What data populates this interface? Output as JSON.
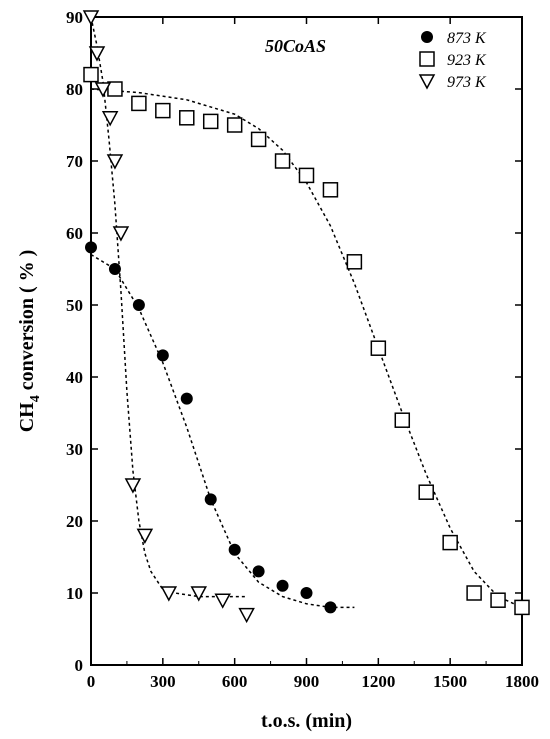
{
  "chart_data": {
    "type": "scatter",
    "title": "50CoAS",
    "xlabel": "t.o.s. (min)",
    "ylabel_main": "CH",
    "ylabel_sub": "4",
    "ylabel_rest": " conversion ( % )",
    "xlim": [
      0,
      1800
    ],
    "ylim": [
      0,
      90
    ],
    "xticks": [
      0,
      300,
      600,
      900,
      1200,
      1500,
      1800
    ],
    "yticks": [
      0,
      10,
      20,
      30,
      40,
      50,
      60,
      70,
      80,
      90
    ],
    "grid": false,
    "legend_position": "top-right",
    "series": [
      {
        "name": "873 K",
        "marker": "filled-circle",
        "x": [
          0,
          100,
          200,
          300,
          400,
          500,
          600,
          700,
          800,
          900,
          1000
        ],
        "y": [
          58,
          55,
          50,
          43,
          37,
          23,
          16,
          13,
          11,
          10,
          8
        ],
        "fit": {
          "x": [
            0,
            100,
            200,
            300,
            400,
            500,
            600,
            700,
            800,
            900,
            1000,
            1100
          ],
          "y": [
            57,
            55,
            49.5,
            42,
            33,
            23,
            15.5,
            11.5,
            9.5,
            8.5,
            8,
            8
          ]
        }
      },
      {
        "name": "923 K",
        "marker": "open-square",
        "x": [
          0,
          100,
          200,
          300,
          400,
          500,
          600,
          700,
          800,
          900,
          1000,
          1100,
          1200,
          1300,
          1400,
          1500,
          1600,
          1700,
          1800
        ],
        "y": [
          82,
          80,
          78,
          77,
          76,
          75.5,
          75,
          73,
          70,
          68,
          66,
          56,
          44,
          34,
          24,
          17,
          10,
          9,
          8
        ],
        "fit": {
          "x": [
            0,
            200,
            400,
            600,
            700,
            800,
            900,
            1000,
            1100,
            1200,
            1300,
            1400,
            1500,
            1600,
            1700,
            1800
          ],
          "y": [
            80,
            79.5,
            78.5,
            76.5,
            74.5,
            71.5,
            67,
            61,
            53,
            44,
            35,
            26.5,
            19,
            13,
            9.5,
            8
          ]
        }
      },
      {
        "name": "973 K",
        "marker": "open-triangle-down",
        "x": [
          0,
          25,
          50,
          80,
          100,
          125,
          175,
          225,
          325,
          450,
          550,
          650
        ],
        "y": [
          90,
          85,
          80,
          76,
          70,
          60,
          25,
          18,
          10,
          10,
          9,
          7
        ],
        "fit": {
          "x": [
            0,
            25,
            50,
            75,
            100,
            125,
            150,
            175,
            200,
            225,
            250,
            300,
            350,
            450,
            550,
            650
          ],
          "y": [
            90,
            86,
            81,
            73,
            64,
            52,
            38,
            27,
            20,
            15.5,
            13,
            10.5,
            10,
            9.5,
            9.5,
            9.5
          ]
        }
      }
    ]
  }
}
